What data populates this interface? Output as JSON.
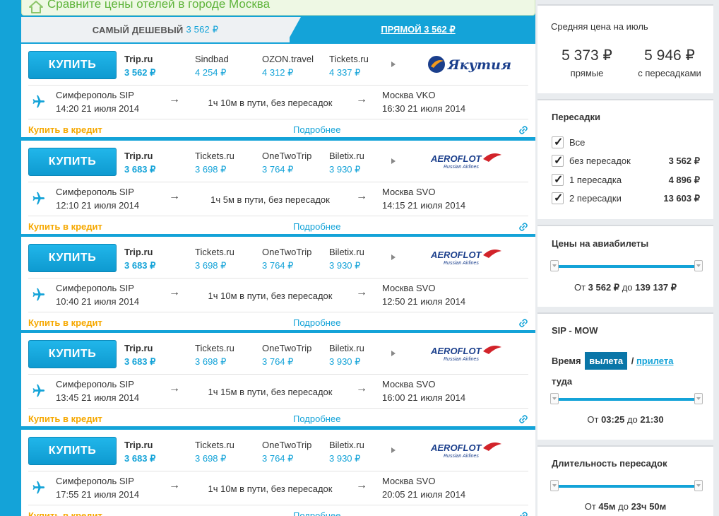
{
  "banner": {
    "text": "Сравните цены отелей в городе Москва"
  },
  "tabs": {
    "cheapest_label": "САМЫЙ ДЕШЕВЫЙ",
    "cheapest_price": "3 562 ₽",
    "direct_label": "ПРЯМОЙ 3 562 ₽"
  },
  "cards": [
    {
      "buy_label": "КУПИТЬ",
      "agencies": [
        {
          "name": "Trip.ru",
          "price": "3 562 ₽"
        },
        {
          "name": "Sindbad",
          "price": "4 254 ₽"
        },
        {
          "name": "OZON.travel",
          "price": "4 312 ₽"
        },
        {
          "name": "Tickets.ru",
          "price": "4 337 ₽"
        }
      ],
      "airline": "Якутия",
      "departure": {
        "city": "Симферополь SIP",
        "time": "14:20 21 июля 2014"
      },
      "duration": "1ч 10м в пути, без пересадок",
      "arrival": {
        "city": "Москва VKO",
        "time": "16:30 21 июля 2014"
      },
      "credit": "Купить в кредит",
      "details": "Подробнее"
    },
    {
      "buy_label": "КУПИТЬ",
      "agencies": [
        {
          "name": "Trip.ru",
          "price": "3 683 ₽"
        },
        {
          "name": "Tickets.ru",
          "price": "3 698 ₽"
        },
        {
          "name": "OneTwoTrip",
          "price": "3 764 ₽"
        },
        {
          "name": "Biletix.ru",
          "price": "3 930 ₽"
        }
      ],
      "airline": "AEROFLOT",
      "airline_sub": "Russian Airlines",
      "departure": {
        "city": "Симферополь SIP",
        "time": "12:10 21 июля 2014"
      },
      "duration": "1ч 5м в пути, без пересадок",
      "arrival": {
        "city": "Москва SVO",
        "time": "14:15 21 июля 2014"
      },
      "credit": "Купить в кредит",
      "details": "Подробнее"
    },
    {
      "buy_label": "КУПИТЬ",
      "agencies": [
        {
          "name": "Trip.ru",
          "price": "3 683 ₽"
        },
        {
          "name": "Tickets.ru",
          "price": "3 698 ₽"
        },
        {
          "name": "OneTwoTrip",
          "price": "3 764 ₽"
        },
        {
          "name": "Biletix.ru",
          "price": "3 930 ₽"
        }
      ],
      "airline": "AEROFLOT",
      "airline_sub": "Russian Airlines",
      "departure": {
        "city": "Симферополь SIP",
        "time": "10:40 21 июля 2014"
      },
      "duration": "1ч 10м в пути, без пересадок",
      "arrival": {
        "city": "Москва SVO",
        "time": "12:50 21 июля 2014"
      },
      "credit": "Купить в кредит",
      "details": "Подробнее"
    },
    {
      "buy_label": "КУПИТЬ",
      "agencies": [
        {
          "name": "Trip.ru",
          "price": "3 683 ₽"
        },
        {
          "name": "Tickets.ru",
          "price": "3 698 ₽"
        },
        {
          "name": "OneTwoTrip",
          "price": "3 764 ₽"
        },
        {
          "name": "Biletix.ru",
          "price": "3 930 ₽"
        }
      ],
      "airline": "AEROFLOT",
      "airline_sub": "Russian Airlines",
      "departure": {
        "city": "Симферополь SIP",
        "time": "13:45 21 июля 2014"
      },
      "duration": "1ч 15м в пути, без пересадок",
      "arrival": {
        "city": "Москва SVO",
        "time": "16:00 21 июля 2014"
      },
      "credit": "Купить в кредит",
      "details": "Подробнее"
    },
    {
      "buy_label": "КУПИТЬ",
      "agencies": [
        {
          "name": "Trip.ru",
          "price": "3 683 ₽"
        },
        {
          "name": "Tickets.ru",
          "price": "3 698 ₽"
        },
        {
          "name": "OneTwoTrip",
          "price": "3 764 ₽"
        },
        {
          "name": "Biletix.ru",
          "price": "3 930 ₽"
        }
      ],
      "airline": "AEROFLOT",
      "airline_sub": "Russian Airlines",
      "departure": {
        "city": "Симферополь SIP",
        "time": "17:55 21 июля 2014"
      },
      "duration": "1ч 10м в пути, без пересадок",
      "arrival": {
        "city": "Москва SVO",
        "time": "20:05 21 июля 2014"
      },
      "credit": "Купить в кредит",
      "details": "Подробнее"
    }
  ],
  "sidebar": {
    "avg": {
      "title": "Средняя цена на июль",
      "direct_value": "5 373 ₽",
      "direct_label": "прямые",
      "transfer_value": "5 946 ₽",
      "transfer_label": "с пересадками"
    },
    "stops": {
      "title": "Пересадки",
      "options": [
        {
          "label": "Все",
          "price": ""
        },
        {
          "label": "без пересадок",
          "price": "3 562 ₽"
        },
        {
          "label": "1 пересадка",
          "price": "4 896 ₽"
        },
        {
          "label": "2 пересадки",
          "price": "13 603 ₽"
        }
      ]
    },
    "prices": {
      "title": "Цены на авиабилеты",
      "from_word": "От",
      "from": "3 562 ₽",
      "to_word": "до",
      "to": "139 137 ₽"
    },
    "route": {
      "title": "SIP - MOW",
      "time_word": "Время",
      "departure_tab": "вылета",
      "slash": "/",
      "arrival_tab": "прилета",
      "direction": "туда",
      "from_word": "От",
      "from": "03:25",
      "to_word": "до",
      "to": "21:30"
    },
    "layover": {
      "title": "Длительность пересадок",
      "from_word": "От",
      "from": "45м",
      "to_word": "до",
      "to": "23ч 50м"
    }
  },
  "colors": {
    "accent": "#14a3d8",
    "credit": "#f6a800",
    "banner_text": "#5fb43b"
  }
}
